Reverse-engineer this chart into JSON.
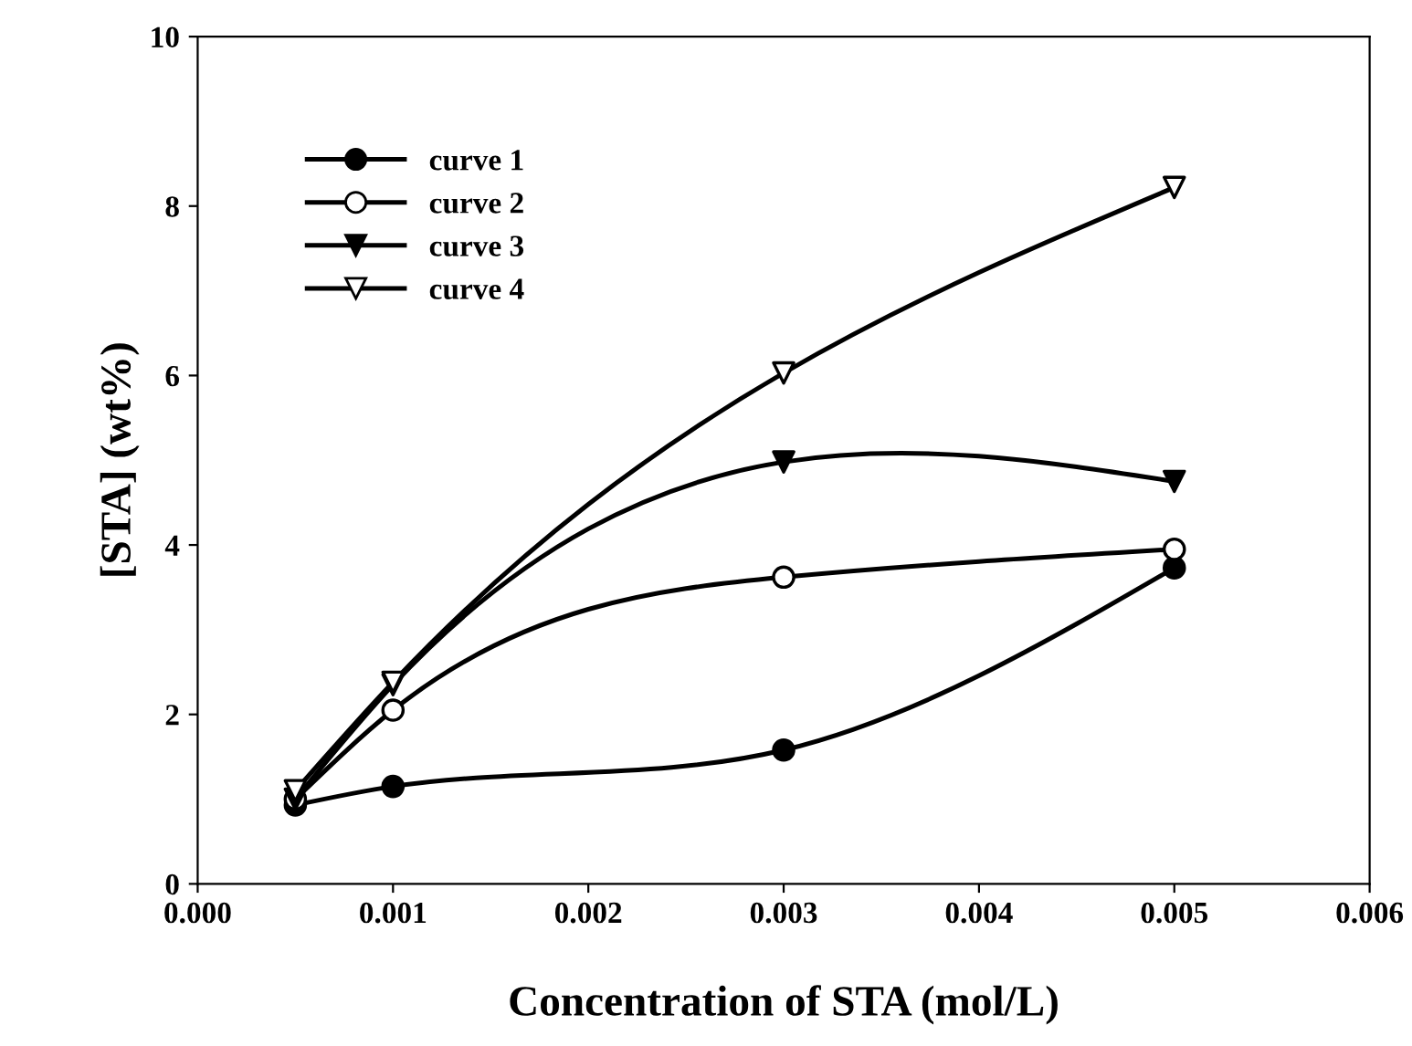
{
  "chart_data": {
    "type": "line",
    "xlabel": "Concentration of STA (mol/L)",
    "ylabel": "[STA] (wt%)",
    "x": [
      0.0005,
      0.001,
      0.003,
      0.005
    ],
    "series": [
      {
        "name": "curve 1",
        "color": "#000000",
        "marker": "circle",
        "colors": [
          "#000000",
          "#000000",
          "#000000",
          "#000000"
        ],
        "values": [
          0.93,
          1.15,
          1.58,
          3.73
        ]
      },
      {
        "name": "curve 2",
        "color": "#000000",
        "marker": "circle",
        "colors": [
          "#ffffff",
          "#ffffff",
          "#ffffff",
          "#ffffff"
        ],
        "values": [
          1.0,
          2.05,
          3.62,
          3.95
        ]
      },
      {
        "name": "curve 3",
        "color": "#000000",
        "marker": "triangle",
        "colors": [
          "#000000",
          "#000000",
          "#000000",
          "#000000"
        ],
        "values": [
          1.0,
          2.35,
          4.98,
          4.75
        ]
      },
      {
        "name": "curve 4",
        "color": "#000000",
        "marker": "triangle",
        "colors": [
          "#ffffff",
          "#ffffff",
          "#ffffff",
          "#ffffff"
        ],
        "values": [
          1.1,
          2.38,
          6.03,
          8.22
        ]
      }
    ],
    "xlim": [
      0.0,
      0.006
    ],
    "xticks": [
      {
        "value": 0,
        "label": "0.000"
      },
      {
        "value": 0.001,
        "label": "0.001"
      },
      {
        "value": 0.002,
        "label": "0.002"
      },
      {
        "value": 0.003,
        "label": "0.003"
      },
      {
        "value": 0.004,
        "label": "0.004"
      },
      {
        "value": 0.005,
        "label": "0.005"
      },
      {
        "value": 0.006,
        "label": "0.006"
      }
    ],
    "ylim": [
      0,
      10
    ],
    "yticks": [
      0,
      2,
      4,
      6,
      8,
      10
    ],
    "grid": false,
    "legend": "top left",
    "line_style": "solid"
  }
}
